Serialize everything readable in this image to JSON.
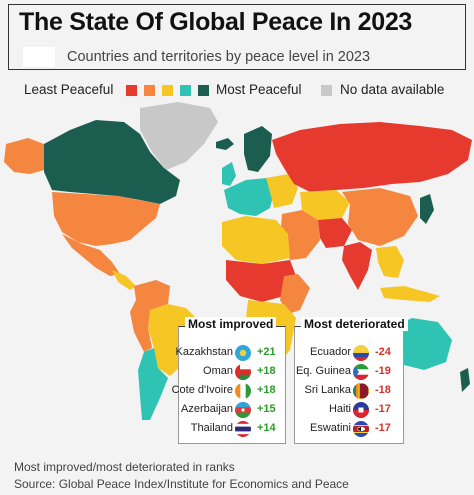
{
  "title": "The State Of Global Peace In 2023",
  "subtitle": "Countries and territories by peace level in 2023",
  "legend": {
    "least_label": "Least Peaceful",
    "most_label": "Most Peaceful",
    "no_data_label": "No data available",
    "scale_colors": [
      "#e63a2e",
      "#f4863f",
      "#f6c625",
      "#2fc3b4",
      "#1b5e4f"
    ],
    "no_data_color": "#c8c8c8"
  },
  "most_improved": {
    "heading": "Most improved",
    "items": [
      {
        "country": "Kazakhstan",
        "change": "+21"
      },
      {
        "country": "Oman",
        "change": "+18"
      },
      {
        "country": "Cote d'Ivoire",
        "change": "+18"
      },
      {
        "country": "Azerbaijan",
        "change": "+15"
      },
      {
        "country": "Thailand",
        "change": "+14"
      }
    ]
  },
  "most_deteriorated": {
    "heading": "Most deteriorated",
    "items": [
      {
        "country": "Ecuador",
        "change": "-24"
      },
      {
        "country": "Eq. Guinea",
        "change": "-19"
      },
      {
        "country": "Sri Lanka",
        "change": "-18"
      },
      {
        "country": "Haiti",
        "change": "-17"
      },
      {
        "country": "Eswatini",
        "change": "-17"
      }
    ]
  },
  "footnote": "Most improved/most deteriorated in ranks",
  "source": "Source: Global Peace Index/Institute for Economics and Peace"
}
